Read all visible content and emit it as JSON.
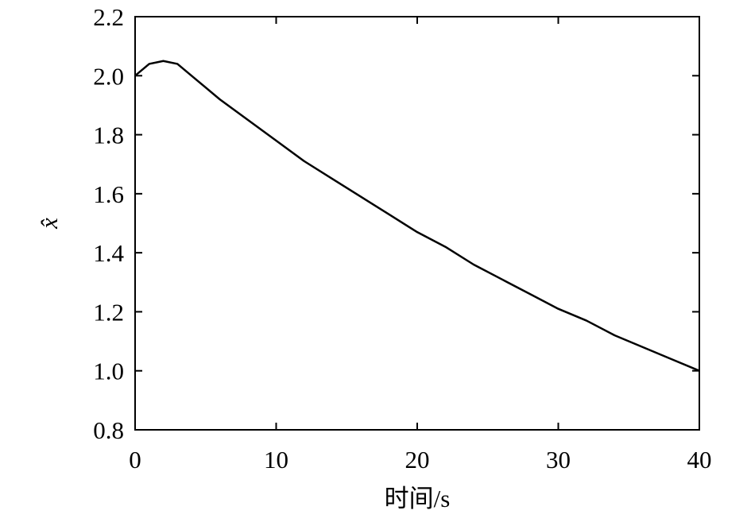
{
  "chart_data": {
    "type": "line",
    "x_label": "时间/s",
    "y_label": "x̂",
    "x": [
      0,
      1,
      2,
      3,
      4,
      6,
      8,
      10,
      12,
      14,
      16,
      18,
      20,
      22,
      24,
      26,
      28,
      30,
      32,
      34,
      36,
      38,
      40
    ],
    "series": [
      {
        "color": "#000000",
        "values": [
          2.0,
          2.04,
          2.05,
          2.04,
          2.0,
          1.92,
          1.85,
          1.78,
          1.71,
          1.65,
          1.59,
          1.53,
          1.47,
          1.42,
          1.36,
          1.31,
          1.26,
          1.21,
          1.17,
          1.12,
          1.08,
          1.04,
          1.0
        ]
      }
    ],
    "xlim": [
      0,
      40
    ],
    "xticks": [
      0,
      10,
      20,
      30,
      40
    ],
    "ylim": [
      0.8,
      2.2
    ],
    "yticks": [
      0.8,
      {
        "value": 1,
        "label": "1.0"
      },
      1.2,
      1.4,
      1.6,
      1.8,
      {
        "value": 2,
        "label": "2.0"
      },
      2.2
    ],
    "grid": false
  }
}
